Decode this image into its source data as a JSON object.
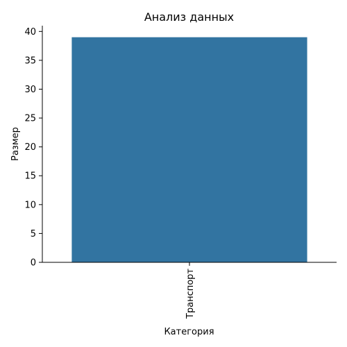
{
  "chart_data": {
    "type": "bar",
    "title": "Анализ данных",
    "xlabel": "Категория",
    "ylabel": "Размер",
    "categories": [
      "Транспорт"
    ],
    "values": [
      39
    ],
    "ylim": [
      0,
      41
    ],
    "yticks": [
      0,
      5,
      10,
      15,
      20,
      25,
      30,
      35,
      40
    ],
    "bar_color": "#3274a1",
    "grid": false,
    "legend": "none"
  }
}
